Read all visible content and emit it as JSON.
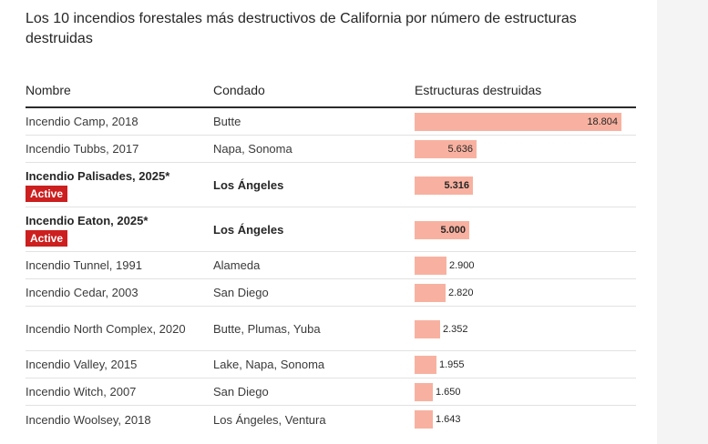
{
  "chart_data": {
    "type": "table",
    "title": "Los 10 incendios forestales más destructivos de California por número de estructuras destruidas",
    "columns": [
      "Nombre",
      "Condado",
      "Estructuras destruidas"
    ],
    "badge_label": "Active",
    "colors": {
      "bar": "#f8b1a0",
      "badge": "#cc1f1f",
      "header_rule": "#2b2b2b"
    },
    "max_value": 18804,
    "rows": [
      {
        "name": "Incendio Camp, 2018",
        "county": "Butte",
        "value": 18804,
        "value_label": "18.804",
        "active": false
      },
      {
        "name": "Incendio Tubbs, 2017",
        "county": "Napa, Sonoma",
        "value": 5636,
        "value_label": "5.636",
        "active": false
      },
      {
        "name": "Incendio Palisades, 2025*",
        "county": "Los Ángeles",
        "value": 5316,
        "value_label": "5.316",
        "active": true
      },
      {
        "name": "Incendio Eaton, 2025*",
        "county": "Los Ángeles",
        "value": 5000,
        "value_label": "5.000",
        "active": true
      },
      {
        "name": "Incendio Tunnel, 1991",
        "county": "Alameda",
        "value": 2900,
        "value_label": "2.900",
        "active": false
      },
      {
        "name": "Incendio Cedar, 2003",
        "county": "San Diego",
        "value": 2820,
        "value_label": "2.820",
        "active": false
      },
      {
        "name": "Incendio North Complex, 2020",
        "county": "Butte, Plumas, Yuba",
        "value": 2352,
        "value_label": "2.352",
        "active": false
      },
      {
        "name": "Incendio Valley, 2015",
        "county": "Lake, Napa, Sonoma",
        "value": 1955,
        "value_label": "1.955",
        "active": false
      },
      {
        "name": "Incendio Witch, 2007",
        "county": "San Diego",
        "value": 1650,
        "value_label": "1.650",
        "active": false
      },
      {
        "name": "Incendio Woolsey, 2018",
        "county": "Los Ángeles, Ventura",
        "value": 1643,
        "value_label": "1.643",
        "active": false
      }
    ]
  }
}
